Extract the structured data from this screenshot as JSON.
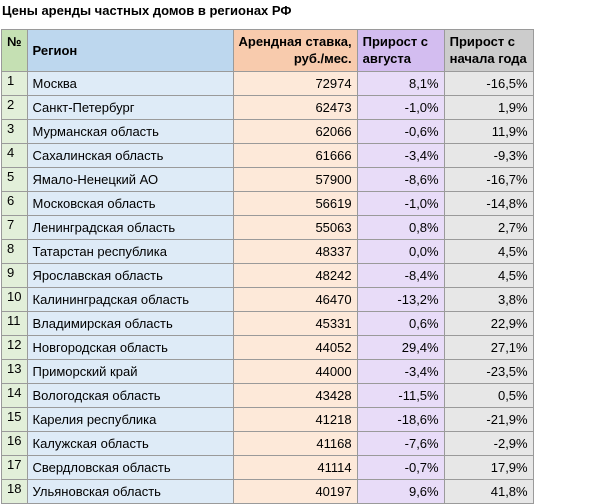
{
  "title": "Цены аренды частных домов в регионах РФ",
  "headers": {
    "num": "№",
    "region": "Регион",
    "rent_line1": "Арендная ставка,",
    "rent_line2": "руб./мес.",
    "aug_line1": "Прирост с",
    "aug_line2": "августа",
    "ytd_line1": "Прирост с",
    "ytd_line2": "начала года"
  },
  "rows": [
    {
      "num": "1",
      "region": "Москва",
      "rent": "72974",
      "aug": "8,1%",
      "ytd": "-16,5%"
    },
    {
      "num": "2",
      "region": "Санкт-Петербург",
      "rent": "62473",
      "aug": "-1,0%",
      "ytd": "1,9%"
    },
    {
      "num": "3",
      "region": "Мурманская область",
      "rent": "62066",
      "aug": "-0,6%",
      "ytd": "11,9%"
    },
    {
      "num": "4",
      "region": "Сахалинская область",
      "rent": "61666",
      "aug": "-3,4%",
      "ytd": "-9,3%"
    },
    {
      "num": "5",
      "region": "Ямало-Ненецкий АО",
      "rent": "57900",
      "aug": "-8,6%",
      "ytd": "-16,7%"
    },
    {
      "num": "6",
      "region": "Московская область",
      "rent": "56619",
      "aug": "-1,0%",
      "ytd": "-14,8%"
    },
    {
      "num": "7",
      "region": "Ленинградская область",
      "rent": "55063",
      "aug": "0,8%",
      "ytd": "2,7%"
    },
    {
      "num": "8",
      "region": "Татарстан республика",
      "rent": "48337",
      "aug": "0,0%",
      "ytd": "4,5%"
    },
    {
      "num": "9",
      "region": "Ярославская область",
      "rent": "48242",
      "aug": "-8,4%",
      "ytd": "4,5%"
    },
    {
      "num": "10",
      "region": "Калининградская область",
      "rent": "46470",
      "aug": "-13,2%",
      "ytd": "3,8%"
    },
    {
      "num": "11",
      "region": "Владимирская область",
      "rent": "45331",
      "aug": "0,6%",
      "ytd": "22,9%"
    },
    {
      "num": "12",
      "region": "Новгородская область",
      "rent": "44052",
      "aug": "29,4%",
      "ytd": "27,1%"
    },
    {
      "num": "13",
      "region": "Приморский край",
      "rent": "44000",
      "aug": "-3,4%",
      "ytd": "-23,5%"
    },
    {
      "num": "14",
      "region": "Вологодская область",
      "rent": "43428",
      "aug": "-11,5%",
      "ytd": "0,5%"
    },
    {
      "num": "15",
      "region": "Карелия республика",
      "rent": "41218",
      "aug": "-18,6%",
      "ytd": "-21,9%"
    },
    {
      "num": "16",
      "region": "Калужская область",
      "rent": "41168",
      "aug": "-7,6%",
      "ytd": "-2,9%"
    },
    {
      "num": "17",
      "region": "Свердловская область",
      "rent": "41114",
      "aug": "-0,7%",
      "ytd": "17,9%"
    },
    {
      "num": "18",
      "region": "Ульяновская область",
      "rent": "40197",
      "aug": "9,6%",
      "ytd": "41,8%"
    }
  ]
}
